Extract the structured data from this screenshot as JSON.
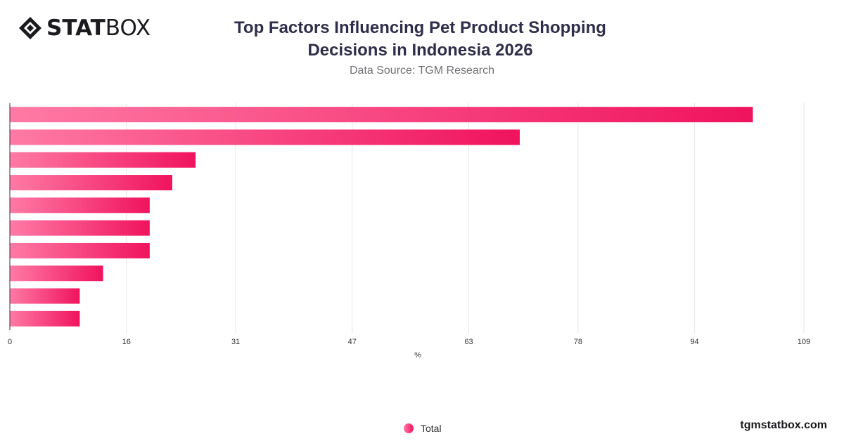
{
  "brand": {
    "logo_bold": "STAT",
    "logo_light": "BOX",
    "website": "tgmstatbox.com"
  },
  "header": {
    "title_line1": "Top Factors Influencing Pet Product Shopping",
    "title_line2": "Decisions in Indonesia 2026",
    "source": "Data Source: TGM Research"
  },
  "legend": {
    "total_label": "Total"
  },
  "colors": {
    "bar_start": "#ff7aa5",
    "bar_end": "#f0135e",
    "grid": "#e6e6e6",
    "axis": "#333333",
    "tick_text": "#333333"
  },
  "chart_data": {
    "type": "bar",
    "orientation": "horizontal",
    "categories": [
      "",
      "",
      "",
      "",
      "",
      "",
      "",
      "",
      "",
      ""
    ],
    "series": [
      {
        "name": "Total",
        "values": [
          102,
          70,
          25.5,
          22.3,
          19.2,
          19.2,
          19.2,
          12.8,
          9.6,
          9.6
        ]
      }
    ],
    "xlabel": "%",
    "ylabel": "",
    "xlim": [
      0,
      112
    ],
    "xticks": [
      0,
      16,
      31,
      47,
      63,
      78,
      94,
      109
    ],
    "grid": true,
    "legend": "bottom-center"
  }
}
